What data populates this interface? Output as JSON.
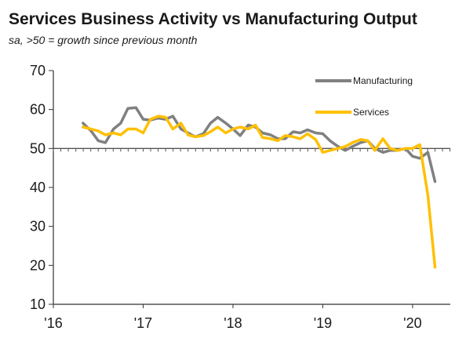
{
  "chart_data": {
    "type": "line",
    "title": "Services Business Activity vs Manufacturing Output",
    "subtitle": "sa, >50 = growth since previous month",
    "xlabel": "",
    "ylabel": "",
    "ylim": [
      10,
      70
    ],
    "yticks": [
      10,
      20,
      30,
      40,
      50,
      60,
      70
    ],
    "xlim": [
      2016.0,
      2020.42
    ],
    "xticks": [
      {
        "value": 2016,
        "label": "'16"
      },
      {
        "value": 2017,
        "label": "'17"
      },
      {
        "value": 2018,
        "label": "'18"
      },
      {
        "value": 2019,
        "label": "'19"
      },
      {
        "value": 2020,
        "label": "'20"
      }
    ],
    "reference_line": 50,
    "grid": false,
    "legend_placement": "top-right",
    "series": [
      {
        "name": "Manufacturing",
        "color": "#808080",
        "x": [
          2016.33,
          2016.42,
          2016.5,
          2016.58,
          2016.67,
          2016.75,
          2016.83,
          2016.92,
          2017.0,
          2017.08,
          2017.17,
          2017.25,
          2017.33,
          2017.42,
          2017.5,
          2017.58,
          2017.67,
          2017.75,
          2017.83,
          2017.92,
          2018.0,
          2018.08,
          2018.17,
          2018.25,
          2018.33,
          2018.42,
          2018.5,
          2018.58,
          2018.67,
          2018.75,
          2018.83,
          2018.92,
          2019.0,
          2019.08,
          2019.17,
          2019.25,
          2019.33,
          2019.42,
          2019.5,
          2019.58,
          2019.67,
          2019.75,
          2019.83,
          2019.92,
          2020.0,
          2020.08,
          2020.17,
          2020.25
        ],
        "values": [
          56.5,
          54.5,
          52.0,
          51.5,
          55.0,
          56.5,
          60.3,
          60.5,
          57.5,
          57.3,
          57.8,
          57.5,
          58.3,
          55.0,
          54.0,
          53.0,
          53.8,
          56.5,
          58.0,
          56.5,
          55.0,
          53.3,
          56.0,
          55.5,
          54.0,
          53.5,
          52.5,
          52.5,
          54.3,
          54.0,
          54.8,
          54.0,
          53.8,
          52.0,
          50.5,
          49.5,
          50.5,
          51.5,
          52.0,
          50.0,
          49.0,
          49.5,
          49.5,
          50.0,
          48.0,
          47.5,
          49.0,
          41.5
        ]
      },
      {
        "name": "Services",
        "color": "#FFC000",
        "x": [
          2016.33,
          2016.42,
          2016.5,
          2016.58,
          2016.67,
          2016.75,
          2016.83,
          2016.92,
          2017.0,
          2017.08,
          2017.17,
          2017.25,
          2017.33,
          2017.42,
          2017.5,
          2017.58,
          2017.67,
          2017.75,
          2017.83,
          2017.92,
          2018.0,
          2018.08,
          2018.17,
          2018.25,
          2018.33,
          2018.42,
          2018.5,
          2018.58,
          2018.67,
          2018.75,
          2018.83,
          2018.92,
          2019.0,
          2019.08,
          2019.17,
          2019.25,
          2019.33,
          2019.42,
          2019.5,
          2019.58,
          2019.67,
          2019.75,
          2019.83,
          2019.92,
          2020.0,
          2020.08,
          2020.17,
          2020.25
        ],
        "values": [
          55.5,
          55.0,
          54.5,
          53.5,
          54.0,
          53.5,
          55.0,
          55.0,
          54.0,
          57.5,
          58.3,
          58.0,
          55.0,
          56.5,
          53.5,
          53.0,
          53.3,
          54.3,
          55.5,
          54.0,
          55.0,
          55.5,
          55.0,
          56.0,
          52.8,
          52.5,
          52.0,
          53.3,
          53.0,
          52.5,
          53.8,
          52.3,
          49.0,
          49.5,
          50.0,
          50.5,
          51.5,
          52.3,
          52.0,
          49.5,
          52.5,
          50.0,
          49.5,
          50.0,
          50.0,
          51.0,
          38.0,
          19.5
        ]
      }
    ]
  }
}
